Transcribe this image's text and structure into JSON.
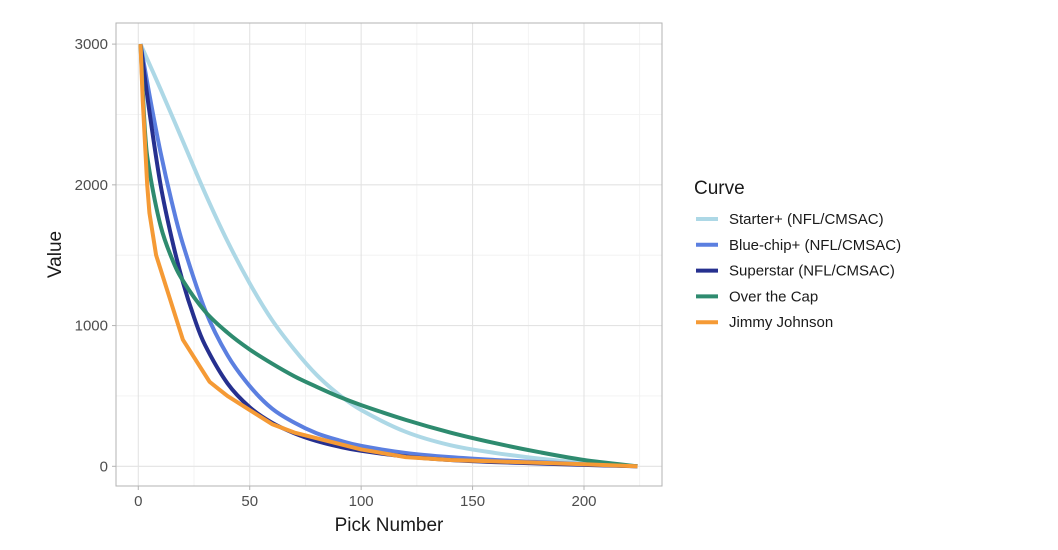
{
  "chart_data": {
    "type": "line",
    "title": "",
    "xlabel": "Pick Number",
    "ylabel": "Value",
    "xlim": [
      -10,
      235
    ],
    "ylim": [
      -140,
      3150
    ],
    "x_ticks": [
      0,
      50,
      100,
      150,
      200
    ],
    "x_tick_labels": [
      "0",
      "50",
      "100",
      "150",
      "200"
    ],
    "y_ticks": [
      0,
      1000,
      2000,
      3000
    ],
    "y_tick_labels": [
      "0",
      "1000",
      "2000",
      "3000"
    ],
    "grid": true,
    "legend": {
      "title": "Curve",
      "position": "right"
    },
    "series": [
      {
        "name": "Starter+ (NFL/CMSAC)",
        "color": "#add8e6",
        "x": [
          1,
          10,
          20,
          30,
          40,
          50,
          60,
          70,
          80,
          90,
          100,
          120,
          140,
          160,
          180,
          200,
          224
        ],
        "y": [
          3000,
          2680,
          2310,
          1940,
          1600,
          1300,
          1040,
          830,
          650,
          510,
          400,
          245,
          150,
          95,
          55,
          25,
          0
        ]
      },
      {
        "name": "Blue-chip+ (NFL/CMSAC)",
        "color": "#5b7fe0",
        "x": [
          1,
          5,
          10,
          15,
          20,
          30,
          40,
          50,
          60,
          70,
          80,
          90,
          100,
          120,
          140,
          160,
          180,
          200,
          224
        ],
        "y": [
          3000,
          2640,
          2230,
          1880,
          1580,
          1110,
          790,
          570,
          410,
          310,
          235,
          185,
          145,
          95,
          65,
          45,
          30,
          15,
          0
        ]
      },
      {
        "name": "Superstar (NFL/CMSAC)",
        "color": "#26308f",
        "x": [
          1,
          5,
          10,
          15,
          20,
          25,
          30,
          40,
          50,
          60,
          70,
          80,
          90,
          100,
          120,
          140,
          160,
          180,
          200,
          224
        ],
        "y": [
          3000,
          2520,
          2000,
          1620,
          1310,
          1060,
          860,
          590,
          420,
          310,
          235,
          180,
          140,
          110,
          70,
          45,
          30,
          20,
          10,
          0
        ]
      },
      {
        "name": "Over the Cap",
        "color": "#2e8b6f",
        "x": [
          1,
          3,
          5,
          10,
          15,
          20,
          30,
          40,
          50,
          60,
          70,
          80,
          90,
          100,
          120,
          140,
          160,
          180,
          200,
          224
        ],
        "y": [
          3000,
          2380,
          2100,
          1710,
          1480,
          1320,
          1100,
          950,
          830,
          730,
          640,
          565,
          495,
          435,
          330,
          240,
          165,
          100,
          45,
          0
        ]
      },
      {
        "name": "Jimmy Johnson",
        "color": "#f59a35",
        "x": [
          1,
          2,
          3,
          4,
          5,
          6,
          8,
          10,
          12,
          14,
          16,
          18,
          20,
          24,
          28,
          32,
          36,
          40,
          50,
          60,
          70,
          80,
          90,
          100,
          120,
          140,
          160,
          180,
          200,
          224
        ],
        "y": [
          3000,
          2600,
          2300,
          2000,
          1800,
          1700,
          1500,
          1400,
          1300,
          1200,
          1100,
          1000,
          900,
          800,
          700,
          600,
          550,
          500,
          400,
          300,
          240,
          200,
          160,
          120,
          65,
          45,
          35,
          25,
          15,
          0
        ]
      }
    ]
  }
}
